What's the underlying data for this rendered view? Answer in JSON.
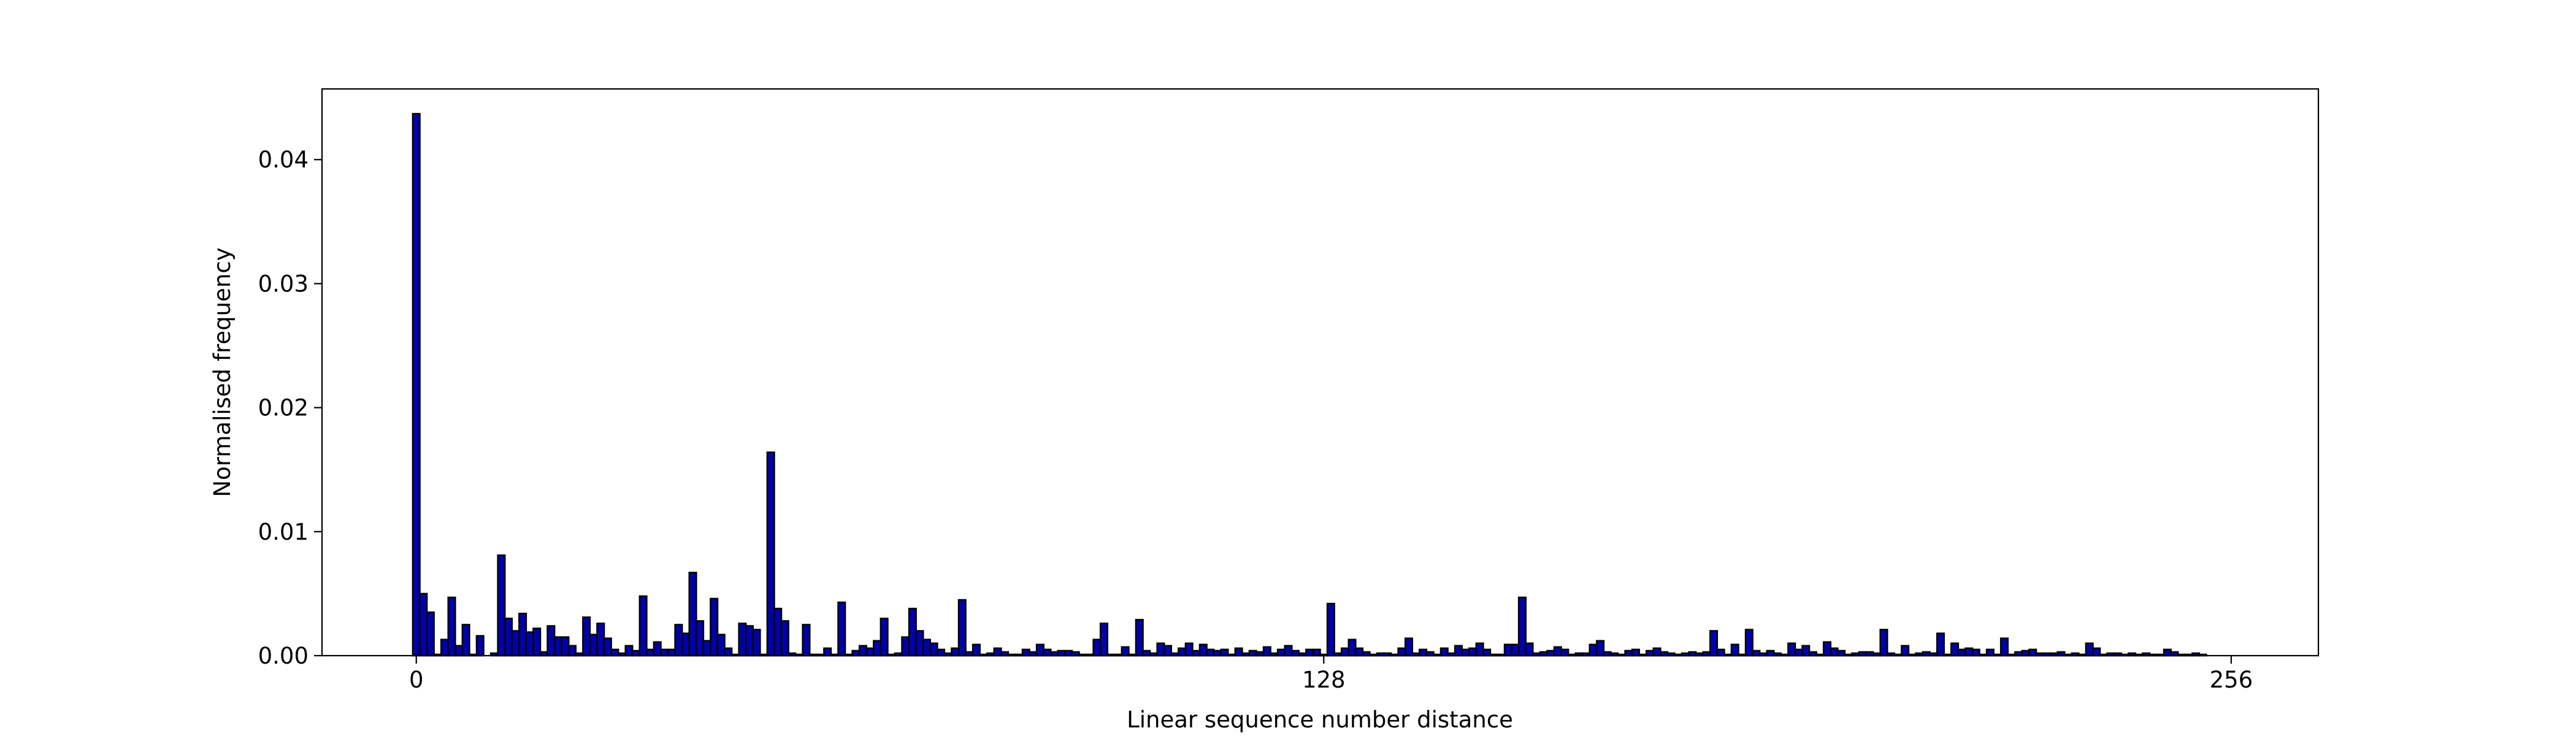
{
  "chart_data": {
    "type": "histogram",
    "xlabel": "Linear sequence number distance",
    "ylabel": "Normalised frequency",
    "color": "#0000aa",
    "edgecolor": "#000000",
    "xlim": [
      -13.3,
      268.3
    ],
    "ylim": [
      0,
      0.0457
    ],
    "xticks": [
      0,
      128,
      256
    ],
    "yticks": [
      {
        "value": 0,
        "label": "0.00"
      },
      0.01,
      0.02,
      0.03,
      0.04
    ],
    "bins": [
      -0.5,
      0.5,
      1.5,
      2.5,
      3.5,
      4.5,
      5.5,
      6.5,
      7.5,
      8.5,
      9.5,
      10.5,
      11.5,
      12.5,
      13.5,
      14.5,
      15.5,
      16.5,
      17.5,
      18.5,
      19.5,
      20.5,
      21.5,
      22.5,
      23.5,
      24.5,
      25.5,
      26.5,
      27.5,
      28.5,
      29.5,
      30.5,
      31.5,
      32.5,
      33.5,
      34.5,
      35.5,
      36.5,
      37.5,
      38.5,
      39.5,
      40.5,
      41.5,
      42.5,
      43.5,
      44.5,
      45.5,
      46.5,
      47.5,
      48.5,
      49.5,
      50.5,
      51.5,
      52.5,
      53.5,
      54.5,
      55.5,
      56.5,
      57.5,
      58.5,
      59.5,
      60.5,
      61.5,
      62.5,
      63.5,
      64.5,
      65.5,
      66.5,
      67.5,
      68.5,
      69.5,
      70.5,
      71.5,
      72.5,
      73.5,
      74.5,
      75.5,
      76.5,
      77.5,
      78.5,
      79.5,
      80.5,
      81.5,
      82.5,
      83.5,
      84.5,
      85.5,
      86.5,
      87.5,
      88.5,
      89.5,
      90.5,
      91.5,
      92.5,
      93.5,
      94.5,
      95.5,
      96.5,
      97.5,
      98.5,
      99.5,
      100.5,
      101.5,
      102.5,
      103.5,
      104.5,
      105.5,
      106.5,
      107.5,
      108.5,
      109.5,
      110.5,
      111.5,
      112.5,
      113.5,
      114.5,
      115.5,
      116.5,
      117.5,
      118.5,
      119.5,
      120.5,
      121.5,
      122.5,
      123.5,
      124.5,
      125.5,
      126.5,
      127.5,
      128.5,
      129.5,
      130.5,
      131.5,
      132.5,
      133.5,
      134.5,
      135.5,
      136.5,
      137.5,
      138.5,
      139.5,
      140.5,
      141.5,
      142.5,
      143.5,
      144.5,
      145.5,
      146.5,
      147.5,
      148.5,
      149.5,
      150.5,
      151.5,
      152.5,
      153.5,
      154.5,
      155.5,
      156.5,
      157.5,
      158.5,
      159.5,
      160.5,
      161.5,
      162.5,
      163.5,
      164.5,
      165.5,
      166.5,
      167.5,
      168.5,
      169.5,
      170.5,
      171.5,
      172.5,
      173.5,
      174.5,
      175.5,
      176.5,
      177.5,
      178.5,
      179.5,
      180.5,
      181.5,
      182.5,
      183.5,
      184.5,
      185.5,
      186.5,
      187.5,
      188.5,
      189.5,
      190.5,
      191.5,
      192.5,
      193.5,
      194.5,
      195.5,
      196.5,
      197.5,
      198.5,
      199.5,
      200.5,
      201.5,
      202.5,
      203.5,
      204.5,
      205.5,
      206.5,
      207.5,
      208.5,
      209.5,
      210.5,
      211.5,
      212.5,
      213.5,
      214.5,
      215.5,
      216.5,
      217.5,
      218.5,
      219.5,
      220.5,
      221.5,
      222.5,
      223.5,
      224.5,
      225.5,
      226.5,
      227.5,
      228.5,
      229.5,
      230.5,
      231.5,
      232.5,
      233.5,
      234.5,
      235.5,
      236.5,
      237.5,
      238.5,
      239.5,
      240.5,
      241.5,
      242.5,
      243.5,
      244.5,
      245.5,
      246.5,
      247.5,
      248.5,
      249.5,
      250.5,
      251.5,
      252.5,
      253.5,
      254.5,
      255.5
    ],
    "values": [
      0.0437,
      0.005,
      0.0035,
      0.0001,
      0.0013,
      0.0047,
      0.0008,
      0.0025,
      0.0001,
      0.0016,
      0,
      0.0002,
      0.0081,
      0.003,
      0.002,
      0.0034,
      0.0019,
      0.0022,
      0.0003,
      0.0024,
      0.0015,
      0.0015,
      0.0008,
      0.0002,
      0.0031,
      0.0017,
      0.0026,
      0.0014,
      0.0005,
      0.0002,
      0.0008,
      0.0004,
      0.0048,
      0.0005,
      0.0011,
      0.0005,
      0.0005,
      0.0025,
      0.0018,
      0.0067,
      0.0028,
      0.0012,
      0.0046,
      0.0017,
      0.0006,
      0.0001,
      0.0026,
      0.0024,
      0.0021,
      0.0001,
      0.0164,
      0.0038,
      0.0028,
      0.0002,
      0.0001,
      0.0025,
      0.0001,
      0.0001,
      0.0006,
      0.0001,
      0.0043,
      0.0001,
      0.0004,
      0.0008,
      0.0006,
      0.0012,
      0.003,
      0.0001,
      0.0002,
      0.0015,
      0.0038,
      0.002,
      0.0013,
      0.001,
      0.0005,
      0.0002,
      0.0006,
      0.0045,
      0.0003,
      0.0009,
      0.0001,
      0.0002,
      0.0006,
      0.0003,
      0.0001,
      0.0001,
      0.0005,
      0.0003,
      0.0009,
      0.0005,
      0.0003,
      0.0004,
      0.0004,
      0.0003,
      0.0001,
      0.0001,
      0.0013,
      0.0026,
      0.0001,
      0.0001,
      0.0007,
      0.0001,
      0.0029,
      0.0004,
      0.0002,
      0.001,
      0.0008,
      0.0002,
      0.0006,
      0.001,
      0.0004,
      0.0009,
      0.0005,
      0.0004,
      0.0005,
      0.0001,
      0.0006,
      0.0002,
      0.0004,
      0.0003,
      0.0007,
      0.0002,
      0.0005,
      0.0008,
      0.0004,
      0.0002,
      0.0005,
      0.0005,
      0.0001,
      0.0042,
      0.0002,
      0.0006,
      0.0013,
      0.0006,
      0.0003,
      0.0001,
      0.0002,
      0.0002,
      0.0001,
      0.0006,
      0.0014,
      0.0002,
      0.0005,
      0.0003,
      0.0001,
      0.0006,
      0.0002,
      0.0008,
      0.0005,
      0.0006,
      0.001,
      0.0005,
      0.0001,
      0.0001,
      0.0009,
      0.0009,
      0.0047,
      0.001,
      0.0002,
      0.0003,
      0.0004,
      0.0007,
      0.0005,
      0.0001,
      0.0002,
      0.0002,
      0.0009,
      0.0012,
      0.0003,
      0.0002,
      0.0001,
      0.0004,
      0.0005,
      0.0001,
      0.0004,
      0.0006,
      0.0003,
      0.0002,
      0.0001,
      0.0002,
      0.0003,
      0.0002,
      0.0003,
      0.002,
      0.0005,
      0.0001,
      0.0009,
      0.0001,
      0.0021,
      0.0004,
      0.0002,
      0.0004,
      0.0002,
      0.0001,
      0.001,
      0.0005,
      0.0008,
      0.0003,
      0.0001,
      0.0011,
      0.0006,
      0.0004,
      0.0001,
      0.0002,
      0.0003,
      0.0003,
      0.0002,
      0.0021,
      0.0002,
      0.0001,
      0.0008,
      0.0001,
      0.0002,
      0.0003,
      0.0002,
      0.0018,
      0.0001,
      0.001,
      0.0005,
      0.0006,
      0.0005,
      0.0001,
      0.0005,
      0.0001,
      0.0014,
      0.0001,
      0.0003,
      0.0004,
      0.0005,
      0.0002,
      0.0002,
      0.0002,
      0.0003,
      0.0001,
      0.0002,
      0.0001,
      0.001,
      0.0006,
      0.0001,
      0.0002,
      0.0002,
      0.0001,
      0.0002,
      0.0001,
      0.0002,
      0.0001,
      0.0001,
      0.0005,
      0.0003,
      0.0001,
      0.0001,
      0.0002,
      0.0001,
      0,
      0,
      0
    ]
  }
}
